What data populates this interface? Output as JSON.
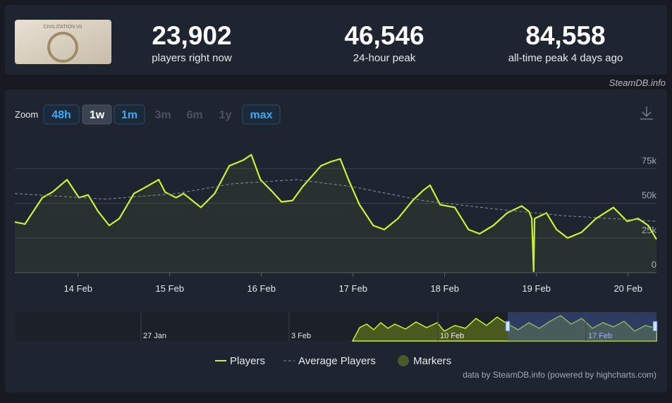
{
  "header": {
    "game_title": "CIVILIZATION VII",
    "stats": [
      {
        "value": "23,902",
        "label": "players right now"
      },
      {
        "value": "46,546",
        "label": "24-hour peak"
      },
      {
        "value": "84,558",
        "label": "all-time peak 4 days ago"
      }
    ]
  },
  "credit": "SteamDB.info",
  "zoom": {
    "label": "Zoom",
    "buttons": [
      {
        "label": "48h",
        "state": "enabled"
      },
      {
        "label": "1w",
        "state": "active"
      },
      {
        "label": "1m",
        "state": "enabled"
      },
      {
        "label": "3m",
        "state": "disabled"
      },
      {
        "label": "6m",
        "state": "disabled"
      },
      {
        "label": "1y",
        "state": "disabled"
      },
      {
        "label": "max",
        "state": "enabled"
      }
    ]
  },
  "chart_data": {
    "type": "line",
    "series": [
      {
        "name": "Players",
        "color": "#c6f432",
        "x": [
          13.31,
          13.42,
          13.61,
          13.72,
          13.88,
          14.01,
          14.11,
          14.22,
          14.34,
          14.45,
          14.61,
          14.72,
          14.88,
          14.95,
          15.07,
          15.15,
          15.34,
          15.49,
          15.65,
          15.8,
          15.89,
          15.99,
          16.11,
          16.22,
          16.34,
          16.45,
          16.65,
          16.76,
          16.86,
          16.95,
          17.07,
          17.22,
          17.34,
          17.49,
          17.65,
          17.76,
          17.84,
          17.95,
          18.11,
          18.26,
          18.38,
          18.53,
          18.68,
          18.84,
          18.92,
          18.95,
          18.97,
          18.98,
          19.11,
          19.22,
          19.34,
          19.49,
          19.65,
          19.84,
          19.99,
          20.11,
          20.22,
          20.31
        ],
        "values": [
          36500,
          35000,
          54000,
          58000,
          67000,
          54000,
          56000,
          44000,
          34000,
          39000,
          57000,
          61000,
          67000,
          58000,
          54000,
          57000,
          47000,
          57000,
          77000,
          81000,
          85000,
          67000,
          59000,
          51000,
          52000,
          62000,
          77000,
          80000,
          82000,
          67000,
          49000,
          34000,
          31000,
          39000,
          52000,
          59000,
          63000,
          49000,
          47000,
          31000,
          28000,
          34000,
          43000,
          48000,
          44000,
          39000,
          1000,
          39000,
          43000,
          31000,
          25000,
          29000,
          39000,
          47000,
          37000,
          39000,
          34000,
          24000
        ]
      },
      {
        "name": "Average Players",
        "color": "#8a8f99",
        "dashed": true,
        "x": [
          13.31,
          14.3,
          15.07,
          15.68,
          16.38,
          16.99,
          17.76,
          18.53,
          19.3,
          20.31
        ],
        "values": [
          57000,
          53000,
          57000,
          64000,
          67000,
          62000,
          52000,
          46000,
          41000,
          37000
        ]
      },
      {
        "name": "Markers",
        "color": "#4b5a2a",
        "x": [],
        "values": []
      }
    ],
    "xlim": [
      13.31,
      20.31
    ],
    "xticks": [
      {
        "value": 14,
        "label": "14 Feb"
      },
      {
        "value": 15,
        "label": "15 Feb"
      },
      {
        "value": 16,
        "label": "16 Feb"
      },
      {
        "value": 17,
        "label": "17 Feb"
      },
      {
        "value": 18,
        "label": "18 Feb"
      },
      {
        "value": 19,
        "label": "19 Feb"
      },
      {
        "value": 20,
        "label": "20 Feb"
      }
    ],
    "ylim": [
      0,
      100000
    ],
    "yticks": [
      0,
      {
        "value": 25000,
        "label": "25k"
      },
      {
        "value": 50000,
        "label": "50k"
      },
      {
        "value": 75000,
        "label": "75k"
      }
    ],
    "grid": true,
    "navigator_labels": [
      "27 Jan",
      "3 Feb",
      "10 Feb",
      "17 Feb"
    ],
    "source": "data by SteamDB.info (powered by highcharts.com)"
  }
}
